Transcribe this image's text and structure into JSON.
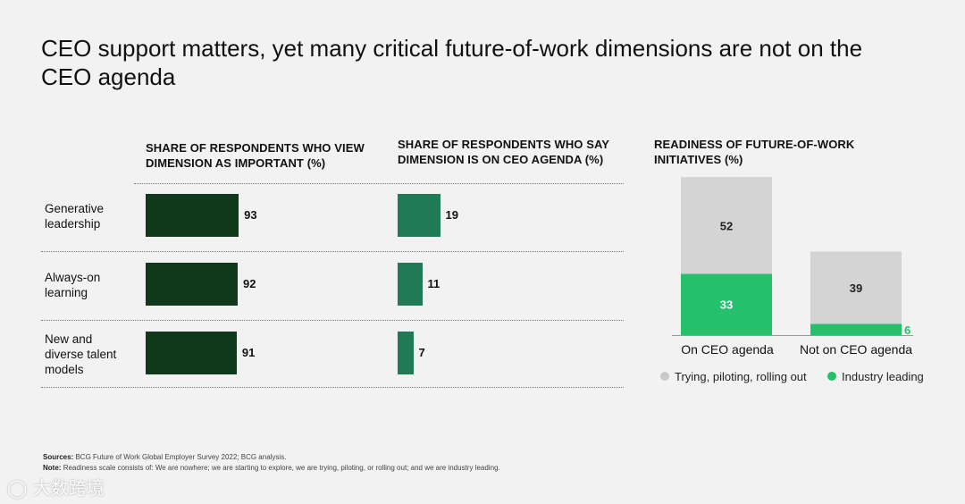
{
  "title": "CEO support matters, yet many critical future-of-work dimensions are not on the CEO agenda",
  "colors": {
    "dark_green": "#10391c",
    "mid_green": "#1f7a55",
    "bright_green": "#24c06b",
    "gray": "#d4d4d4"
  },
  "chart_data": [
    {
      "type": "bar",
      "orientation": "horizontal",
      "title": "SHARE OF RESPONDENTS WHO VIEW DIMENSION AS IMPORTANT (%)",
      "categories": [
        "Generative leadership",
        "Always-on learning",
        "New and diverse talent models"
      ],
      "category_lines": [
        [
          "Generative",
          "leadership"
        ],
        [
          "Always-on",
          "learning"
        ],
        [
          "New and",
          "diverse talent",
          "models"
        ]
      ],
      "values": [
        93,
        92,
        91
      ],
      "xlim": [
        0,
        100
      ]
    },
    {
      "type": "bar",
      "orientation": "horizontal",
      "title": "SHARE OF RESPONDENTS WHO SAY DIMENSION IS ON CEO AGENDA (%)",
      "categories": [
        "Generative leadership",
        "Always-on learning",
        "New and diverse talent models"
      ],
      "values": [
        19,
        11,
        7
      ],
      "xlim": [
        0,
        100
      ]
    },
    {
      "type": "bar",
      "stacked": true,
      "title": "READINESS OF FUTURE-OF-WORK INITIATIVES (%)",
      "categories": [
        "On CEO agenda",
        "Not on CEO agenda"
      ],
      "series": [
        {
          "name": "Industry leading",
          "values": [
            33,
            6
          ]
        },
        {
          "name": "Trying, piloting, rolling out",
          "values": [
            52,
            39
          ]
        }
      ],
      "legend": [
        "Trying, piloting, rolling out",
        "Industry leading"
      ],
      "legend_position": "bottom"
    }
  ],
  "footer": {
    "sources_label": "Sources:",
    "sources_text": "BCG Future of Work Global Employer Survey 2022; BCG analysis.",
    "note_label": "Note:",
    "note_text": "Readiness scale consists of: We are nowhere; we are starting to explore, we are trying, piloting, or rolling out; and we are industry leading."
  },
  "watermark": "大数跨境"
}
